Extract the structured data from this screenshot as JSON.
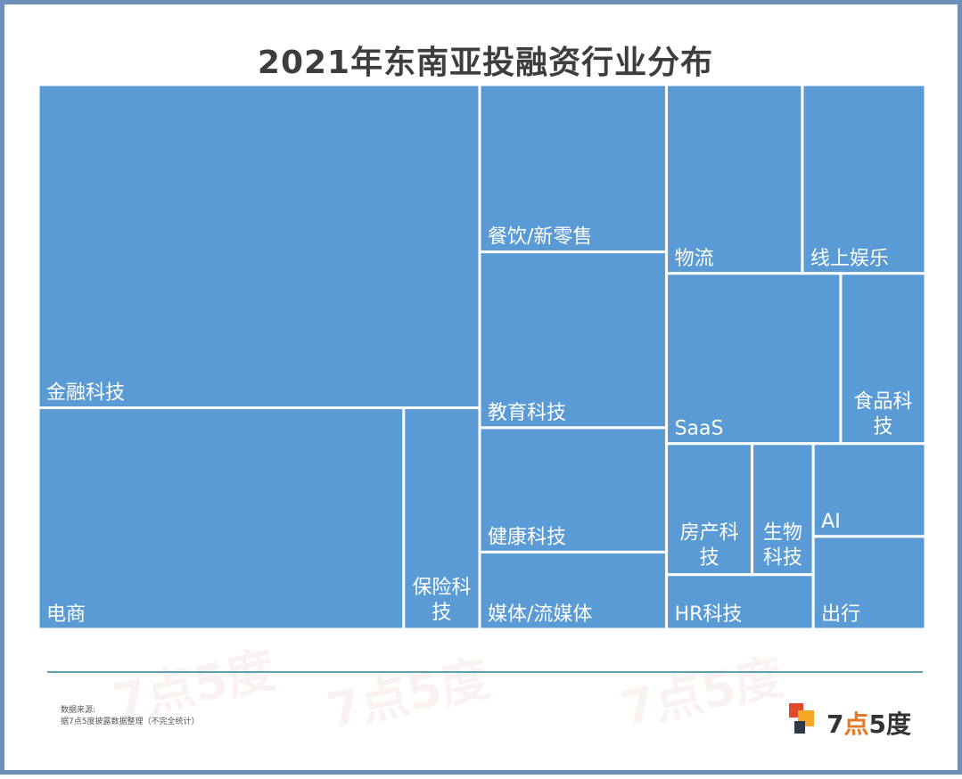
{
  "chart_data": {
    "type": "treemap",
    "title": "2021年东南亚投融资行业分布",
    "color": "#5b9bd5",
    "items": [
      {
        "label": "金融科技",
        "value": 178
      },
      {
        "label": "电商",
        "value": 101
      },
      {
        "label": "保险科技",
        "value": 21
      },
      {
        "label": "餐饮/新零售",
        "value": 39
      },
      {
        "label": "教育科技",
        "value": 41
      },
      {
        "label": "健康科技",
        "value": 29
      },
      {
        "label": "媒体/流媒体",
        "value": 18
      },
      {
        "label": "物流",
        "value": 32
      },
      {
        "label": "线上娱乐",
        "value": 29
      },
      {
        "label": "SaaS",
        "value": 37
      },
      {
        "label": "食品科技",
        "value": 18
      },
      {
        "label": "房产科技",
        "value": 14
      },
      {
        "label": "生物科技",
        "value": 10
      },
      {
        "label": "HR科技",
        "value": 10
      },
      {
        "label": "AI",
        "value": 13
      },
      {
        "label": "出行",
        "value": 13
      }
    ]
  },
  "footer": {
    "source_label": "数据来源:",
    "source_text": "据7点5度披露数据整理（不完全统计）",
    "logo_text_num1": "7",
    "logo_text_dot": "点",
    "logo_text_num2": "5度"
  },
  "watermark_text": "7点5度"
}
